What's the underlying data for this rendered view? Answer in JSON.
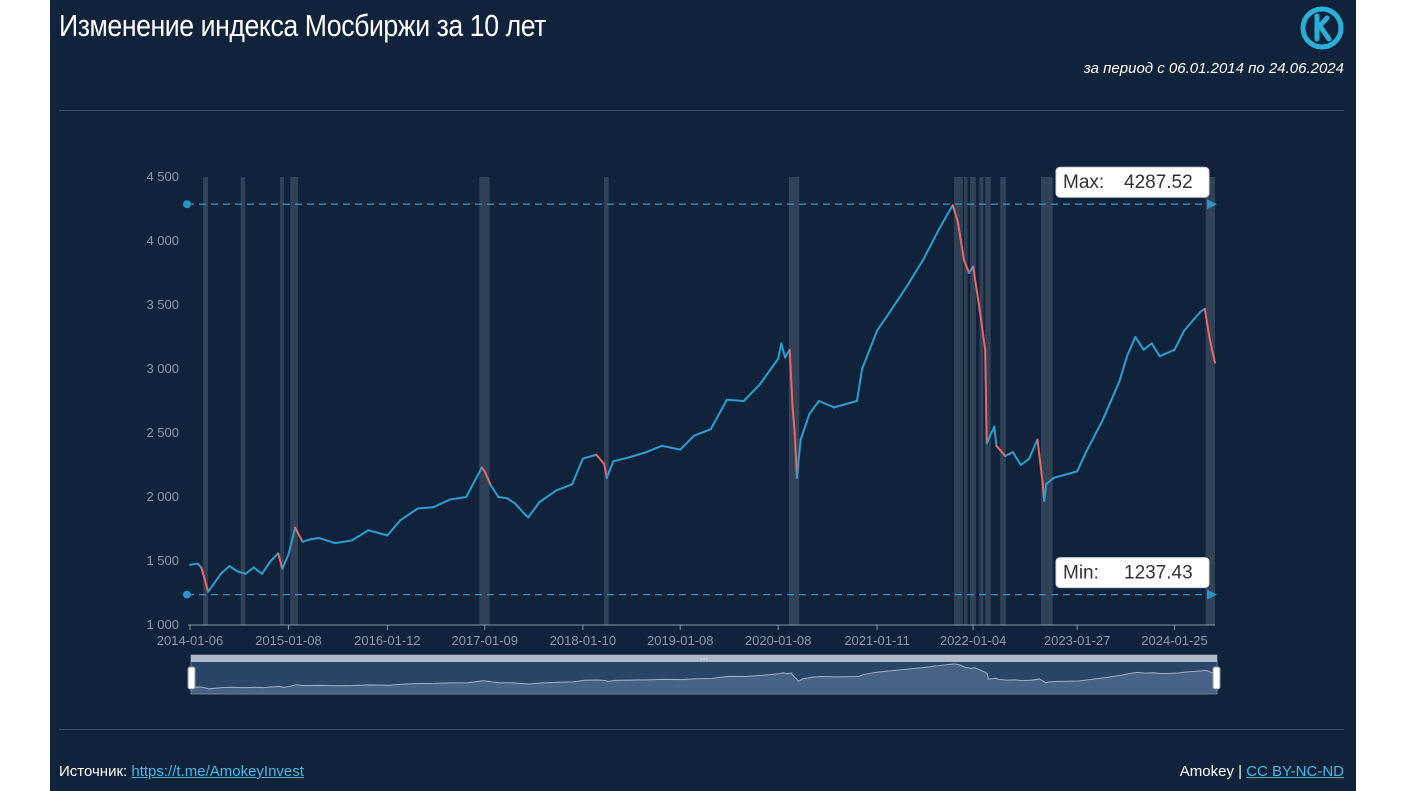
{
  "header": {
    "title": "Изменение индекса Мосбиржи за 10 лет",
    "period": "за период с 06.01.2014 по 24.06.2024",
    "logo_icon": "k-circle-logo-icon"
  },
  "footer": {
    "source_label": "Источник:",
    "source_link": "https://t.me/AmokeyInvest",
    "author": "Amokey",
    "separator": "|",
    "license": "CC BY-NC-ND"
  },
  "colors": {
    "background": "#10233a",
    "line_up": "#2b9fcf",
    "line_down": "#e86868",
    "band": "#4d5d70",
    "reference": "#2a94c4"
  },
  "chart_data": {
    "type": "line",
    "title": "Изменение индекса Мосбиржи за 10 лет",
    "subtitle": "за период с 06.01.2014 по 24.06.2024",
    "ylim": [
      1000,
      4500
    ],
    "y_ticks": [
      "1 000",
      "1 500",
      "2 000",
      "2 500",
      "3 000",
      "3 500",
      "4 000",
      "4 500"
    ],
    "y_tick_values": [
      1000,
      1500,
      2000,
      2500,
      3000,
      3500,
      4000,
      4500
    ],
    "x_range": [
      "2014-01-06",
      "2024-06-24"
    ],
    "x_ticks": [
      "2014-01-06",
      "2015-01-08",
      "2016-01-12",
      "2017-01-09",
      "2018-01-10",
      "2019-01-08",
      "2020-01-08",
      "2021-01-11",
      "2022-01-04",
      "2023-01-27",
      "2024-01-25"
    ],
    "grid": false,
    "series": [
      {
        "x": [
          "2014-01-06",
          "2014-02-03",
          "2014-02-17",
          "2014-03-03",
          "2014-03-14",
          "2014-04-01",
          "2014-05-01",
          "2014-06-02",
          "2014-07-01",
          "2014-08-01",
          "2014-09-01",
          "2014-10-01",
          "2014-11-03",
          "2014-12-01",
          "2014-12-16",
          "2015-01-08",
          "2015-02-02",
          "2015-03-02",
          "2015-04-01",
          "2015-05-01",
          "2015-07-01",
          "2015-09-01",
          "2015-11-02",
          "2016-01-12",
          "2016-03-01",
          "2016-05-04",
          "2016-07-01",
          "2016-09-01",
          "2016-11-01",
          "2016-12-29",
          "2017-01-09",
          "2017-02-01",
          "2017-03-01",
          "2017-04-03",
          "2017-05-02",
          "2017-06-01",
          "2017-06-20",
          "2017-08-01",
          "2017-10-02",
          "2017-12-01",
          "2018-01-10",
          "2018-03-01",
          "2018-03-30",
          "2018-04-09",
          "2018-05-04",
          "2018-07-02",
          "2018-09-03",
          "2018-11-01",
          "2019-01-08",
          "2019-03-01",
          "2019-05-02",
          "2019-07-01",
          "2019-09-02",
          "2019-11-01",
          "2020-01-08",
          "2020-01-20",
          "2020-02-03",
          "2020-02-20",
          "2020-03-02",
          "2020-03-10",
          "2020-03-18",
          "2020-04-01",
          "2020-05-04",
          "2020-06-08",
          "2020-08-03",
          "2020-10-28",
          "2020-11-16",
          "2021-01-11",
          "2021-03-01",
          "2021-05-03",
          "2021-07-01",
          "2021-09-01",
          "2021-10-20",
          "2021-11-08",
          "2021-12-01",
          "2021-12-20",
          "2022-01-04",
          "2022-01-26",
          "2022-02-18",
          "2022-02-24",
          "2022-03-24",
          "2022-04-01",
          "2022-05-04",
          "2022-06-01",
          "2022-07-01",
          "2022-08-01",
          "2022-09-01",
          "2022-09-21",
          "2022-09-26",
          "2022-10-03",
          "2022-11-01",
          "2023-01-27",
          "2023-03-01",
          "2023-05-02",
          "2023-07-03",
          "2023-08-01",
          "2023-09-01",
          "2023-10-02",
          "2023-11-01",
          "2023-12-01",
          "2024-01-25",
          "2024-03-01",
          "2024-05-02",
          "2024-05-17",
          "2024-06-03",
          "2024-06-13",
          "2024-06-24"
        ],
        "values": [
          1470,
          1480,
          1450,
          1350,
          1260,
          1310,
          1400,
          1460,
          1420,
          1400,
          1450,
          1400,
          1500,
          1560,
          1440,
          1550,
          1760,
          1650,
          1670,
          1680,
          1640,
          1660,
          1740,
          1700,
          1820,
          1910,
          1920,
          1980,
          2000,
          2230,
          2200,
          2090,
          2000,
          1990,
          1950,
          1880,
          1840,
          1960,
          2050,
          2100,
          2300,
          2330,
          2260,
          2150,
          2280,
          2310,
          2350,
          2400,
          2370,
          2480,
          2530,
          2760,
          2750,
          2880,
          3080,
          3200,
          3090,
          3150,
          2700,
          2500,
          2150,
          2450,
          2650,
          2750,
          2700,
          2750,
          3000,
          3300,
          3450,
          3650,
          3850,
          4100,
          4280,
          4150,
          3850,
          3750,
          3800,
          3500,
          3150,
          2420,
          2550,
          2400,
          2320,
          2350,
          2250,
          2300,
          2450,
          2100,
          1970,
          2100,
          2150,
          2200,
          2350,
          2600,
          2900,
          3100,
          3250,
          3150,
          3200,
          3100,
          3150,
          3300,
          3450,
          3470,
          3250,
          3150,
          3050
        ]
      }
    ],
    "markers": [
      {
        "label": "Max",
        "value": 4287.52,
        "text": "4287.52",
        "date": "2021-10-20"
      },
      {
        "label": "Min",
        "value": 1237.43,
        "text": "1237.43",
        "date": "2014-03-14"
      }
    ],
    "shaded_periods": [
      [
        "2014-02-24",
        "2014-03-14"
      ],
      [
        "2014-07-14",
        "2014-07-31"
      ],
      [
        "2014-12-08",
        "2014-12-22"
      ],
      [
        "2015-01-15",
        "2015-02-13"
      ],
      [
        "2016-12-20",
        "2017-01-27"
      ],
      [
        "2018-03-30",
        "2018-04-16"
      ],
      [
        "2020-02-17",
        "2020-03-27"
      ],
      [
        "2021-10-25",
        "2021-11-26"
      ],
      [
        "2021-12-01",
        "2021-12-14"
      ],
      [
        "2021-12-24",
        "2022-01-14"
      ],
      [
        "2022-01-28",
        "2022-02-11"
      ],
      [
        "2022-02-18",
        "2022-03-11"
      ],
      [
        "2022-04-15",
        "2022-05-06"
      ],
      [
        "2022-09-14",
        "2022-10-28"
      ],
      [
        "2024-05-20",
        "2024-06-24"
      ]
    ],
    "zoom_slider": {
      "handle_icon": "grip-dots-icon",
      "range": [
        "2014-01-06",
        "2024-06-24"
      ]
    }
  }
}
